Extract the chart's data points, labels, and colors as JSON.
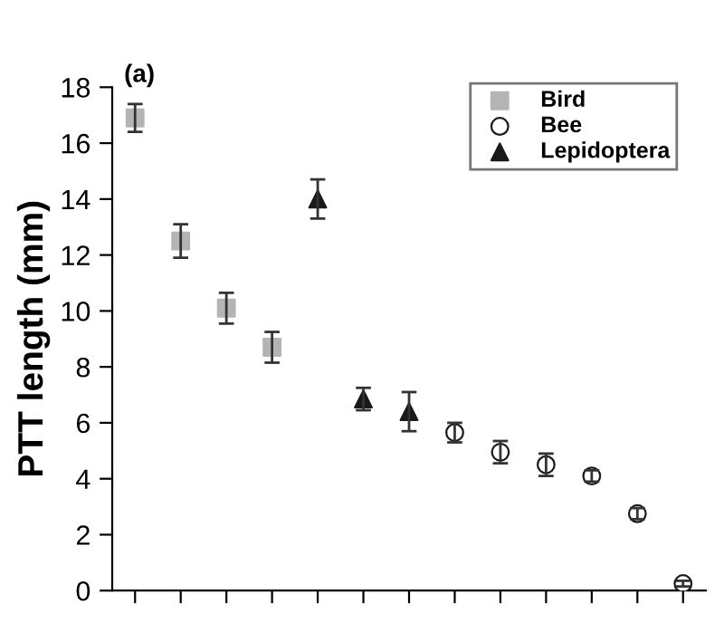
{
  "chart_data": {
    "type": "scatter",
    "ylabel": "PTT length (mm)",
    "annotations": [
      "(a)"
    ],
    "categories": [
      null,
      null,
      null,
      null,
      null,
      null,
      null,
      null,
      null,
      null,
      null,
      null,
      null
    ],
    "series": [
      {
        "name": "Bird",
        "color": "#b4b4b4",
        "marker": "square",
        "values": [
          16.9,
          12.5,
          10.1,
          8.7,
          null,
          null,
          null,
          null,
          null,
          null,
          null,
          null,
          null
        ],
        "errors": [
          0.5,
          0.6,
          0.55,
          0.55,
          null,
          null,
          null,
          null,
          null,
          null,
          null,
          null,
          null
        ]
      },
      {
        "name": "Bee",
        "color": "#ffffff",
        "marker": "circle",
        "values": [
          null,
          null,
          null,
          null,
          null,
          null,
          null,
          5.65,
          4.95,
          4.5,
          4.1,
          2.75,
          0.25
        ],
        "errors": [
          null,
          null,
          null,
          null,
          null,
          null,
          null,
          0.35,
          0.4,
          0.4,
          0.2,
          0.2,
          0.1
        ]
      },
      {
        "name": "Lepidoptera",
        "color": "#1a1a1a",
        "marker": "triangle",
        "values": [
          null,
          null,
          null,
          null,
          14.0,
          6.85,
          6.4,
          null,
          null,
          null,
          null,
          null,
          null
        ],
        "errors": [
          null,
          null,
          null,
          null,
          0.7,
          0.4,
          0.7,
          null,
          null,
          null,
          null,
          null,
          null
        ]
      }
    ],
    "ylim": [
      0,
      18
    ],
    "yticks": [
      0,
      2,
      4,
      6,
      8,
      10,
      12,
      14,
      16,
      18
    ],
    "legend": "top right",
    "grid": false
  }
}
